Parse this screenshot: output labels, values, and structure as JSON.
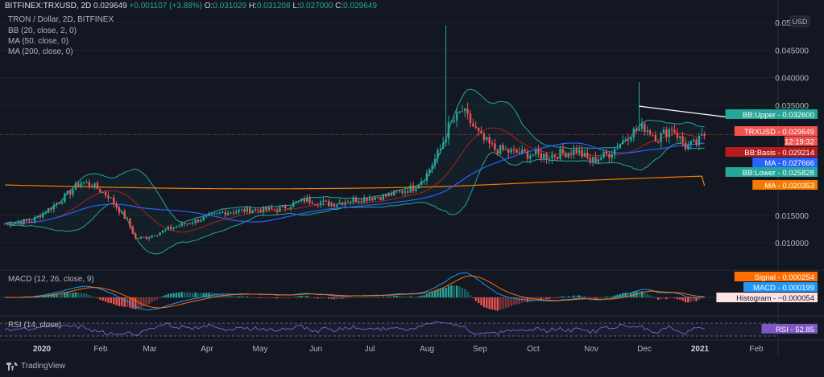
{
  "header": {
    "symbol": "BITFINEX:TRXUSD, 2D",
    "last": "0.029649",
    "change": "+0.001107 (+3.88%)",
    "o_label": "O:",
    "o_val": "0.031029",
    "h_label": "H:",
    "h_val": "0.031208",
    "l_label": "L:",
    "l_val": "0.027000",
    "c_label": "C:",
    "c_val": "0.029649"
  },
  "indicators": {
    "title": "TRON / Dollar, 2D, BITFINEX",
    "bb": "BB (20, close, 2, 0)",
    "ma50": "MA (50, close, 0)",
    "ma200": "MA (200, close, 0)",
    "macd": "MACD (12, 26, close, 9)",
    "rsi": "RSI (14, close)"
  },
  "branding": {
    "name": "TradingView"
  },
  "colors": {
    "background": "#131722",
    "grid": "#1e222d",
    "up": "#26a69a",
    "down": "#ef5350",
    "bb": "#26a69a",
    "ma50": "#2962ff",
    "ma200": "#f57c00",
    "basis": "#b71c1c",
    "macd": "#2196f3",
    "signal": "#ff6d00",
    "rsi": "#7e57c2",
    "trend": "#ffffff"
  },
  "chart_data": {
    "type": "candlestick",
    "price_axis": {
      "currency": "USD",
      "ticks": [
        "0.050000",
        "0.045000",
        "0.040000",
        "0.035000",
        "0.015000",
        "0.010000"
      ],
      "tick_values": [
        0.05,
        0.045,
        0.04,
        0.035,
        0.015,
        0.01
      ]
    },
    "time_axis": {
      "labels": [
        "2020",
        "Feb",
        "Mar",
        "Apr",
        "May",
        "Jun",
        "Jul",
        "Aug",
        "Sep",
        "Oct",
        "Nov",
        "Dec",
        "2021",
        "Feb"
      ],
      "bold": [
        "2020",
        "2021"
      ]
    },
    "close_anchors": [
      [
        0,
        0.0135
      ],
      [
        10,
        0.014
      ],
      [
        20,
        0.0175
      ],
      [
        28,
        0.021
      ],
      [
        32,
        0.0205
      ],
      [
        38,
        0.0185
      ],
      [
        45,
        0.014
      ],
      [
        48,
        0.0108
      ],
      [
        52,
        0.011
      ],
      [
        60,
        0.0125
      ],
      [
        70,
        0.014
      ],
      [
        80,
        0.0155
      ],
      [
        90,
        0.016
      ],
      [
        100,
        0.016
      ],
      [
        110,
        0.0178
      ],
      [
        120,
        0.017
      ],
      [
        130,
        0.018
      ],
      [
        140,
        0.0185
      ],
      [
        150,
        0.02
      ],
      [
        155,
        0.0225
      ],
      [
        160,
        0.027
      ],
      [
        163,
        0.031
      ],
      [
        168,
        0.034
      ],
      [
        175,
        0.029
      ],
      [
        180,
        0.027
      ],
      [
        190,
        0.0262
      ],
      [
        200,
        0.0258
      ],
      [
        210,
        0.0268
      ],
      [
        215,
        0.0248
      ],
      [
        222,
        0.0262
      ],
      [
        230,
        0.03
      ],
      [
        235,
        0.031
      ],
      [
        240,
        0.029
      ],
      [
        245,
        0.031
      ],
      [
        250,
        0.0275
      ],
      [
        254,
        0.028
      ],
      [
        257,
        0.0296
      ]
    ],
    "highlights": [
      {
        "index": 162,
        "high": 0.0495
      },
      {
        "index": 233,
        "high": 0.0392
      }
    ],
    "series": [
      {
        "name": "BB:Upper",
        "value": 0.0326,
        "label": "0.032600"
      },
      {
        "name": "TRXUSD",
        "value": 0.029649,
        "label": "0.029649",
        "countdown": "12:19:32"
      },
      {
        "name": "BB:Basis",
        "value": 0.029214,
        "label": "0.029214"
      },
      {
        "name": "MA",
        "value": 0.027666,
        "label": "0.027666"
      },
      {
        "name": "BB:Lower",
        "value": 0.025828,
        "label": "0.025828"
      },
      {
        "name": "MA",
        "value": 0.020353,
        "label": "0.020353"
      }
    ],
    "trendline": {
      "from": {
        "index": 233,
        "value": 0.0348
      },
      "to": {
        "index": 257,
        "value": 0.0322
      }
    },
    "macd_values": [
      {
        "name": "Signal",
        "value": 0.000254,
        "label": "0.000254"
      },
      {
        "name": "MACD",
        "value": 0.000199,
        "label": "0.000199"
      },
      {
        "name": "Histogram",
        "value": -5.4e-05,
        "label": "−0.000054"
      }
    ],
    "rsi": {
      "name": "RSI",
      "value": 52.85,
      "label": "52.85",
      "bands": [
        30,
        70
      ]
    }
  }
}
